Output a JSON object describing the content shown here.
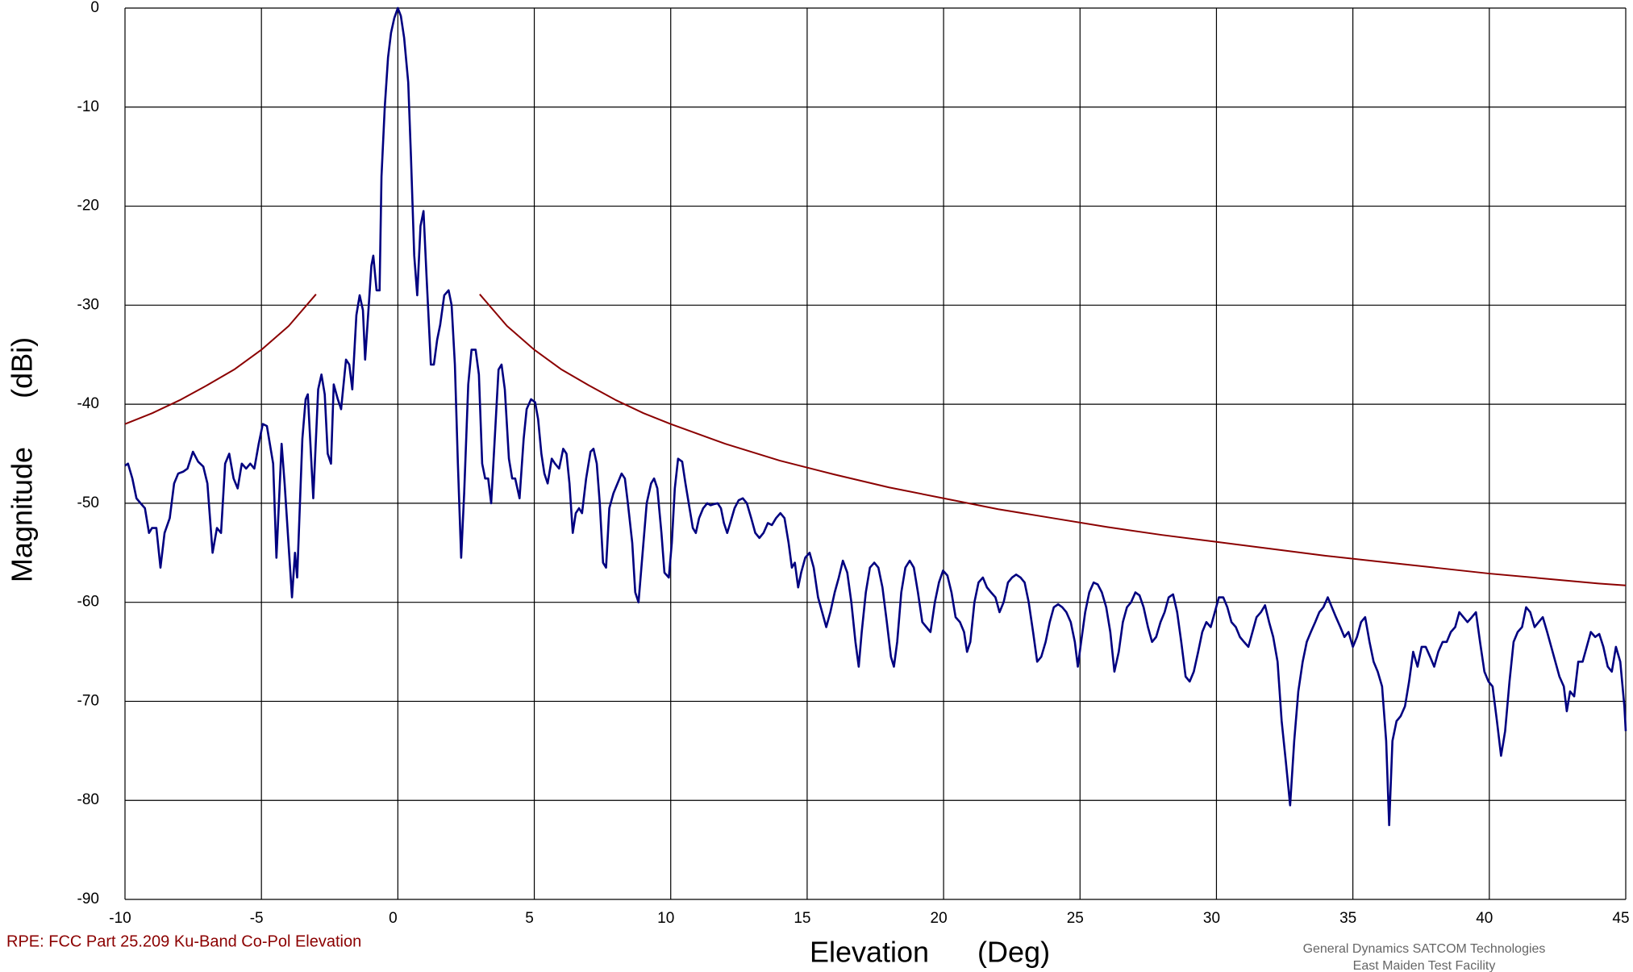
{
  "chart_data": {
    "type": "line",
    "ylabel": "Magnitude      (dBi)",
    "xlabel": "Elevation      (Deg)",
    "caption": "RPE: FCC Part 25.209 Ku-Band Co-Pol Elevation",
    "credit": [
      "General Dynamics SATCOM Technologies",
      "East Maiden Test Facility"
    ],
    "xlim": [
      -10,
      45
    ],
    "xticks": [
      -10,
      -5,
      0,
      5,
      10,
      15,
      20,
      25,
      30,
      35,
      40,
      45
    ],
    "ylim": [
      -90,
      0
    ],
    "yticks": [
      0,
      -10,
      -20,
      -30,
      -40,
      -50,
      -60,
      -70,
      -80,
      -90
    ],
    "grid": true,
    "series": [
      {
        "color": "#000080",
        "x": [
          -10,
          -9.89,
          -9.73,
          -9.58,
          -9.43,
          -9.27,
          -9.12,
          -9.01,
          -8.85,
          -8.7,
          -8.55,
          -8.36,
          -8.2,
          -8.05,
          -7.86,
          -7.71,
          -7.51,
          -7.32,
          -7.13,
          -6.98,
          -6.79,
          -6.63,
          -6.48,
          -6.33,
          -6.18,
          -6.02,
          -5.87,
          -5.72,
          -5.56,
          -5.41,
          -5.26,
          -5.1,
          -4.95,
          -4.8,
          -4.57,
          -4.45,
          -4.26,
          -4.15,
          -3.88,
          -3.77,
          -3.69,
          -3.5,
          -3.38,
          -3.3,
          -3.1,
          -2.92,
          -2.8,
          -2.68,
          -2.57,
          -2.45,
          -2.35,
          -2.2,
          -2.08,
          -1.9,
          -1.78,
          -1.67,
          -1.52,
          -1.4,
          -1.28,
          -1.2,
          -1.09,
          -0.97,
          -0.9,
          -0.78,
          -0.67,
          -0.6,
          -0.48,
          -0.36,
          -0.25,
          -0.13,
          0,
          0.11,
          0.23,
          0.38,
          0.48,
          0.6,
          0.71,
          0.83,
          0.94,
          1.05,
          1.21,
          1.32,
          1.44,
          1.55,
          1.7,
          1.86,
          1.97,
          2.09,
          2.2,
          2.32,
          2.43,
          2.58,
          2.7,
          2.85,
          2.97,
          3.09,
          3.2,
          3.31,
          3.42,
          3.58,
          3.69,
          3.8,
          3.92,
          4.07,
          4.19,
          4.3,
          4.46,
          4.61,
          4.72,
          4.88,
          5.03,
          5.14,
          5.26,
          5.37,
          5.49,
          5.64,
          5.76,
          5.91,
          6.06,
          6.18,
          6.29,
          6.41,
          6.52,
          6.64,
          6.75,
          6.9,
          7.06,
          7.17,
          7.29,
          7.4,
          7.52,
          7.63,
          7.75,
          7.9,
          8.05,
          8.2,
          8.32,
          8.43,
          8.59,
          8.7,
          8.82,
          8.97,
          9.12,
          9.28,
          9.39,
          9.51,
          9.66,
          9.77,
          9.93,
          10.04,
          10.15,
          10.27,
          10.42,
          10.54,
          10.69,
          10.81,
          10.92,
          11.04,
          11.19,
          11.34,
          11.46,
          11.57,
          11.72,
          11.84,
          11.95,
          12.07,
          12.18,
          12.34,
          12.49,
          12.64,
          12.79,
          12.95,
          13.1,
          13.25,
          13.4,
          13.56,
          13.71,
          13.86,
          14.02,
          14.17,
          14.32,
          14.44,
          14.55,
          14.67,
          14.78,
          14.93,
          15.09,
          15.24,
          15.4,
          15.55,
          15.7,
          15.85,
          16.01,
          16.16,
          16.31,
          16.47,
          16.62,
          16.77,
          16.89,
          17,
          17.15,
          17.3,
          17.46,
          17.61,
          17.76,
          17.92,
          18.07,
          18.18,
          18.3,
          18.45,
          18.6,
          18.76,
          18.91,
          19.06,
          19.22,
          19.37,
          19.52,
          19.68,
          19.83,
          19.98,
          20.14,
          20.29,
          20.44,
          20.6,
          20.75,
          20.86,
          20.98,
          21.13,
          21.28,
          21.44,
          21.59,
          21.74,
          21.9,
          22.05,
          22.2,
          22.36,
          22.51,
          22.66,
          22.82,
          22.97,
          23.12,
          23.28,
          23.43,
          23.58,
          23.74,
          23.89,
          24.04,
          24.2,
          24.35,
          24.5,
          24.66,
          24.81,
          24.92,
          25.04,
          25.19,
          25.34,
          25.5,
          25.65,
          25.8,
          25.96,
          26.11,
          26.26,
          26.42,
          26.57,
          26.72,
          26.87,
          27.03,
          27.18,
          27.33,
          27.49,
          27.64,
          27.79,
          27.95,
          28.1,
          28.25,
          28.41,
          28.56,
          28.71,
          28.87,
          29.02,
          29.17,
          29.33,
          29.48,
          29.63,
          29.79,
          29.94,
          30.09,
          30.25,
          30.4,
          30.55,
          30.71,
          30.86,
          31.01,
          31.17,
          31.32,
          31.47,
          31.63,
          31.78,
          31.93,
          32.08,
          32.24,
          32.39,
          32.54,
          32.7,
          32.85,
          33,
          33.16,
          33.31,
          33.46,
          33.62,
          33.77,
          33.92,
          34.08,
          34.23,
          34.38,
          34.54,
          34.69,
          34.84,
          35,
          35.15,
          35.3,
          35.45,
          35.61,
          35.76,
          35.91,
          36.07,
          36.22,
          36.33,
          36.45,
          36.6,
          36.75,
          36.91,
          37.06,
          37.21,
          37.37,
          37.52,
          37.67,
          37.83,
          37.98,
          38.13,
          38.29,
          38.44,
          38.59,
          38.75,
          38.9,
          39.05,
          39.2,
          39.36,
          39.51,
          39.66,
          39.82,
          39.97,
          40.12,
          40.28,
          40.43,
          40.58,
          40.74,
          40.89,
          41.04,
          41.2,
          41.35,
          41.5,
          41.66,
          41.81,
          41.96,
          42.12,
          42.27,
          42.42,
          42.57,
          42.73,
          42.84,
          42.96,
          43.11,
          43.26,
          43.42,
          43.57,
          43.72,
          43.88,
          44.03,
          44.18,
          44.34,
          44.49,
          44.64,
          44.8,
          44.95,
          45
        ],
        "values": [
          -46.2,
          -46,
          -47.5,
          -49.5,
          -50,
          -50.5,
          -53,
          -52.5,
          -52.5,
          -56.5,
          -53,
          -51.5,
          -48,
          -47,
          -46.8,
          -46.5,
          -44.8,
          -45.8,
          -46.3,
          -48,
          -55,
          -52.5,
          -53,
          -46,
          -45,
          -47.5,
          -48.5,
          -46,
          -46.5,
          -46,
          -46.5,
          -44,
          -42,
          -42.2,
          -46,
          -55.5,
          -44,
          -48,
          -59.5,
          -55,
          -57.5,
          -43.5,
          -39.5,
          -39,
          -49.5,
          -38.5,
          -37,
          -39,
          -45,
          -46,
          -38,
          -39.5,
          -40.5,
          -35.5,
          -36,
          -38.5,
          -31,
          -29,
          -30.5,
          -35.5,
          -31,
          -26,
          -25,
          -28.5,
          -28.5,
          -17,
          -10,
          -5,
          -2.5,
          -1,
          0,
          -0.8,
          -3,
          -7.5,
          -15,
          -25,
          -29,
          -22,
          -20.5,
          -27,
          -36,
          -36,
          -33.5,
          -32,
          -29,
          -28.5,
          -30,
          -36,
          -46,
          -55.5,
          -49,
          -38,
          -34.5,
          -34.5,
          -37,
          -46,
          -47.5,
          -47.5,
          -50,
          -42,
          -36.5,
          -36,
          -38.5,
          -45.5,
          -47.5,
          -47.5,
          -49.5,
          -43.5,
          -40.5,
          -39.5,
          -39.8,
          -41.5,
          -45,
          -47,
          -48,
          -45.5,
          -46,
          -46.5,
          -44.5,
          -45,
          -48,
          -53,
          -51,
          -50.5,
          -51,
          -47.5,
          -44.8,
          -44.5,
          -46,
          -50,
          -56,
          -56.5,
          -50.5,
          -49,
          -48,
          -47,
          -47.5,
          -50,
          -54,
          -59,
          -60,
          -55,
          -50,
          -48,
          -47.5,
          -48.5,
          -53,
          -57,
          -57.5,
          -54,
          -48.5,
          -45.5,
          -45.8,
          -48,
          -50.5,
          -52.5,
          -53,
          -51.5,
          -50.5,
          -50,
          -50.2,
          -50.1,
          -50,
          -50.5,
          -52,
          -53,
          -52,
          -50.5,
          -49.7,
          -49.5,
          -50,
          -51.5,
          -53,
          -53.5,
          -53,
          -52,
          -52.2,
          -51.5,
          -51,
          -51.5,
          -54,
          -56.5,
          -56,
          -58.5,
          -57,
          -55.5,
          -55,
          -56.5,
          -59.5,
          -61,
          -62.5,
          -61,
          -59,
          -57.5,
          -55.8,
          -57,
          -60,
          -64,
          -66.5,
          -63,
          -59,
          -56.5,
          -56,
          -56.5,
          -58.5,
          -62,
          -65.5,
          -66.5,
          -64,
          -59,
          -56.5,
          -55.8,
          -56.5,
          -59,
          -62,
          -62.5,
          -63,
          -60,
          -58,
          -56.8,
          -57.3,
          -59,
          -61.5,
          -62,
          -63,
          -65,
          -64,
          -60,
          -58,
          -57.5,
          -58.5,
          -59,
          -59.5,
          -61,
          -60,
          -58,
          -57.5,
          -57.2,
          -57.5,
          -58,
          -60,
          -63,
          -66,
          -65.5,
          -64,
          -62,
          -60.5,
          -60.2,
          -60.5,
          -61,
          -62,
          -64,
          -66.5,
          -64,
          -61,
          -59,
          -58,
          -58.2,
          -59,
          -60.5,
          -63,
          -67,
          -65,
          -62,
          -60.5,
          -60,
          -59,
          -59.3,
          -60.5,
          -62.5,
          -64,
          -63.5,
          -62,
          -61,
          -59.5,
          -59.2,
          -61,
          -64,
          -67.5,
          -68,
          -67,
          -65,
          -63,
          -62,
          -62.5,
          -61,
          -59.5,
          -59.5,
          -60.5,
          -62,
          -62.5,
          -63.5,
          -64,
          -64.5,
          -63,
          -61.5,
          -61,
          -60.3,
          -62,
          -63.5,
          -66,
          -72,
          -76,
          -80.5,
          -74,
          -69,
          -66,
          -64,
          -63,
          -62,
          -61,
          -60.5,
          -59.5,
          -60.5,
          -61.5,
          -62.5,
          -63.5,
          -63,
          -64.5,
          -63.5,
          -62,
          -61.5,
          -64,
          -66,
          -67,
          -68.5,
          -74,
          -82.5,
          -74,
          -72,
          -71.5,
          -70.5,
          -68,
          -65,
          -66.5,
          -64.5,
          -64.5,
          -65.5,
          -66.5,
          -65,
          -64,
          -64,
          -63,
          -62.5,
          -61,
          -61.5,
          -62,
          -61.5,
          -61,
          -64,
          -67,
          -68,
          -68.5,
          -72,
          -75.5,
          -73,
          -68,
          -64,
          -63,
          -62.5,
          -60.5,
          -61,
          -62.5,
          -62,
          -61.5,
          -63,
          -64.5,
          -66,
          -67.5,
          -68.5,
          -71,
          -69,
          -69.5,
          -66,
          -66,
          -64.5,
          -63,
          -63.5,
          -63.2,
          -64.5,
          -66.5,
          -67,
          -64.5,
          -66,
          -70.5,
          -73
        ]
      },
      {
        "color": "#8b0000",
        "x": [
          -10,
          -9,
          -8,
          -7,
          -6,
          -5,
          -4,
          -3,
          0,
          3,
          4,
          5,
          6,
          7,
          8,
          9,
          10,
          12,
          14,
          16,
          18,
          20,
          22,
          24,
          26,
          28,
          30,
          32,
          34,
          36,
          38,
          40,
          42,
          44,
          45
        ],
        "values": [
          -42,
          -40.9,
          -39.6,
          -38.1,
          -36.5,
          -34.5,
          -32.1,
          -28.9,
          null,
          -28.9,
          -32.1,
          -34.5,
          -36.5,
          -38.1,
          -39.6,
          -40.9,
          -42,
          -44,
          -45.7,
          -47.1,
          -48.4,
          -49.5,
          -50.6,
          -51.5,
          -52.4,
          -53.2,
          -53.9,
          -54.6,
          -55.3,
          -55.9,
          -56.5,
          -57.1,
          -57.6,
          -58.1,
          -58.3
        ]
      }
    ]
  }
}
